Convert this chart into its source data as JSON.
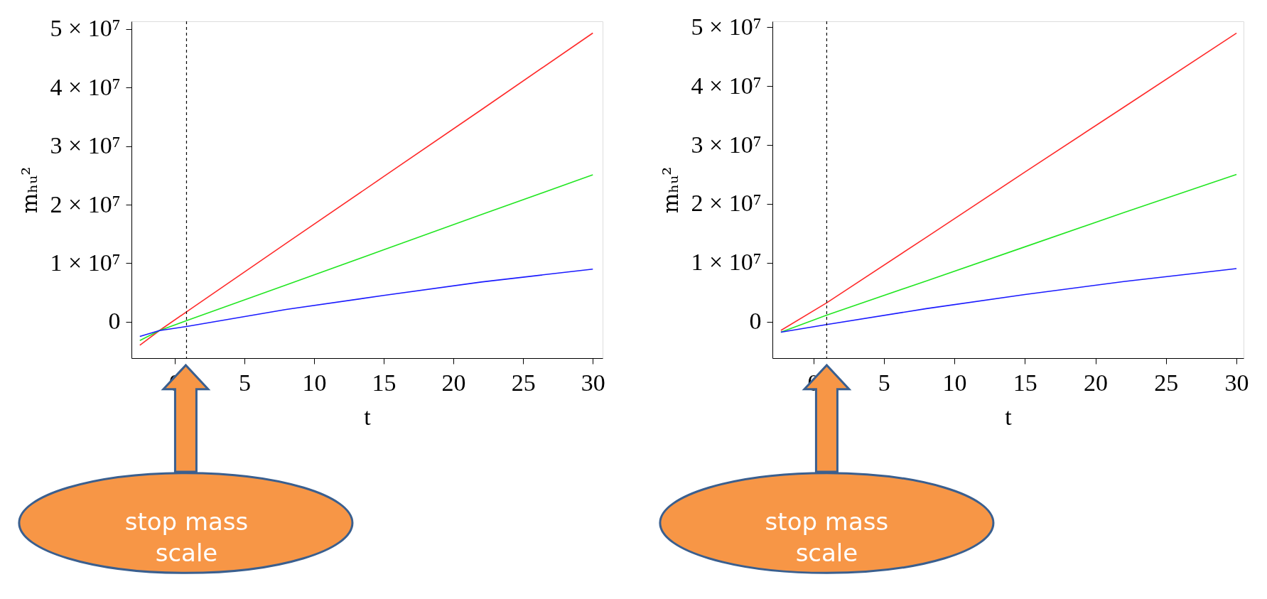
{
  "chart_data": [
    {
      "type": "line",
      "xlabel": "t",
      "ylabel": "mₕᵤ²",
      "xlim": [
        -3.1,
        30.7
      ],
      "ylim": [
        -6200000,
        51300000
      ],
      "xticks": [
        0,
        5,
        10,
        15,
        20,
        25,
        30
      ],
      "yticks": [
        0,
        {
          "value": 10000000,
          "label": "1 × 10⁷"
        },
        {
          "value": 20000000,
          "label": "2 × 10⁷"
        },
        {
          "value": 30000000,
          "label": "3 × 10⁷"
        },
        {
          "value": 40000000,
          "label": "4 × 10⁷"
        },
        {
          "value": 50000000,
          "label": "5 × 10⁷"
        }
      ],
      "grid": false,
      "legend": false,
      "ref_lines": [
        {
          "axis": "x",
          "value": 0.85,
          "color": "#000000",
          "line_style": "dashed"
        }
      ],
      "annotations": [
        "stop mass scale"
      ],
      "series": [
        {
          "color": "#ff2a2a",
          "x": [
            -2.5,
            -1.1,
            0.85,
            8,
            15,
            22,
            30
          ],
          "values": [
            -4000000,
            -1500000,
            1700000,
            13400000,
            24800000,
            36200000,
            49300000
          ]
        },
        {
          "color": "#22e622",
          "x": [
            -2.5,
            -1.1,
            0.85,
            8,
            15,
            22,
            30
          ],
          "values": [
            -3200000,
            -1500000,
            200000,
            6300000,
            12300000,
            18300000,
            25100000
          ]
        },
        {
          "color": "#1a1aff",
          "x": [
            -2.5,
            -1.1,
            0.85,
            8,
            15,
            22,
            30
          ],
          "values": [
            -2500000,
            -1500000,
            -800000,
            2100000,
            4500000,
            6800000,
            9000000
          ]
        }
      ]
    },
    {
      "type": "line",
      "xlabel": "t",
      "ylabel": "mₕᵤ²",
      "xlim": [
        -2.9,
        30.5
      ],
      "ylim": [
        -6200000,
        51000000
      ],
      "xticks": [
        0,
        5,
        10,
        15,
        20,
        25,
        30
      ],
      "yticks": [
        0,
        {
          "value": 10000000,
          "label": "1 × 10⁷"
        },
        {
          "value": 20000000,
          "label": "2 × 10⁷"
        },
        {
          "value": 30000000,
          "label": "3 × 10⁷"
        },
        {
          "value": 40000000,
          "label": "4 × 10⁷"
        },
        {
          "value": 50000000,
          "label": "5 × 10⁷"
        }
      ],
      "grid": false,
      "legend": false,
      "ref_lines": [
        {
          "axis": "x",
          "value": 0.95,
          "color": "#000000",
          "line_style": "dashed"
        }
      ],
      "annotations": [
        "stop mass scale"
      ],
      "series": [
        {
          "color": "#ff2a2a",
          "x": [
            -2.3,
            0.95,
            8,
            15,
            22,
            30
          ],
          "values": [
            -1500000,
            3200000,
            14300000,
            25400000,
            36400000,
            49000000
          ]
        },
        {
          "color": "#22e622",
          "x": [
            -2.3,
            0.95,
            8,
            15,
            22,
            30
          ],
          "values": [
            -1800000,
            1100000,
            6900000,
            12700000,
            18500000,
            25000000
          ]
        },
        {
          "color": "#1a1aff",
          "x": [
            -2.3,
            0.95,
            8,
            15,
            22,
            30
          ],
          "values": [
            -1800000,
            -500000,
            2200000,
            4600000,
            6800000,
            9000000
          ]
        }
      ]
    }
  ]
}
